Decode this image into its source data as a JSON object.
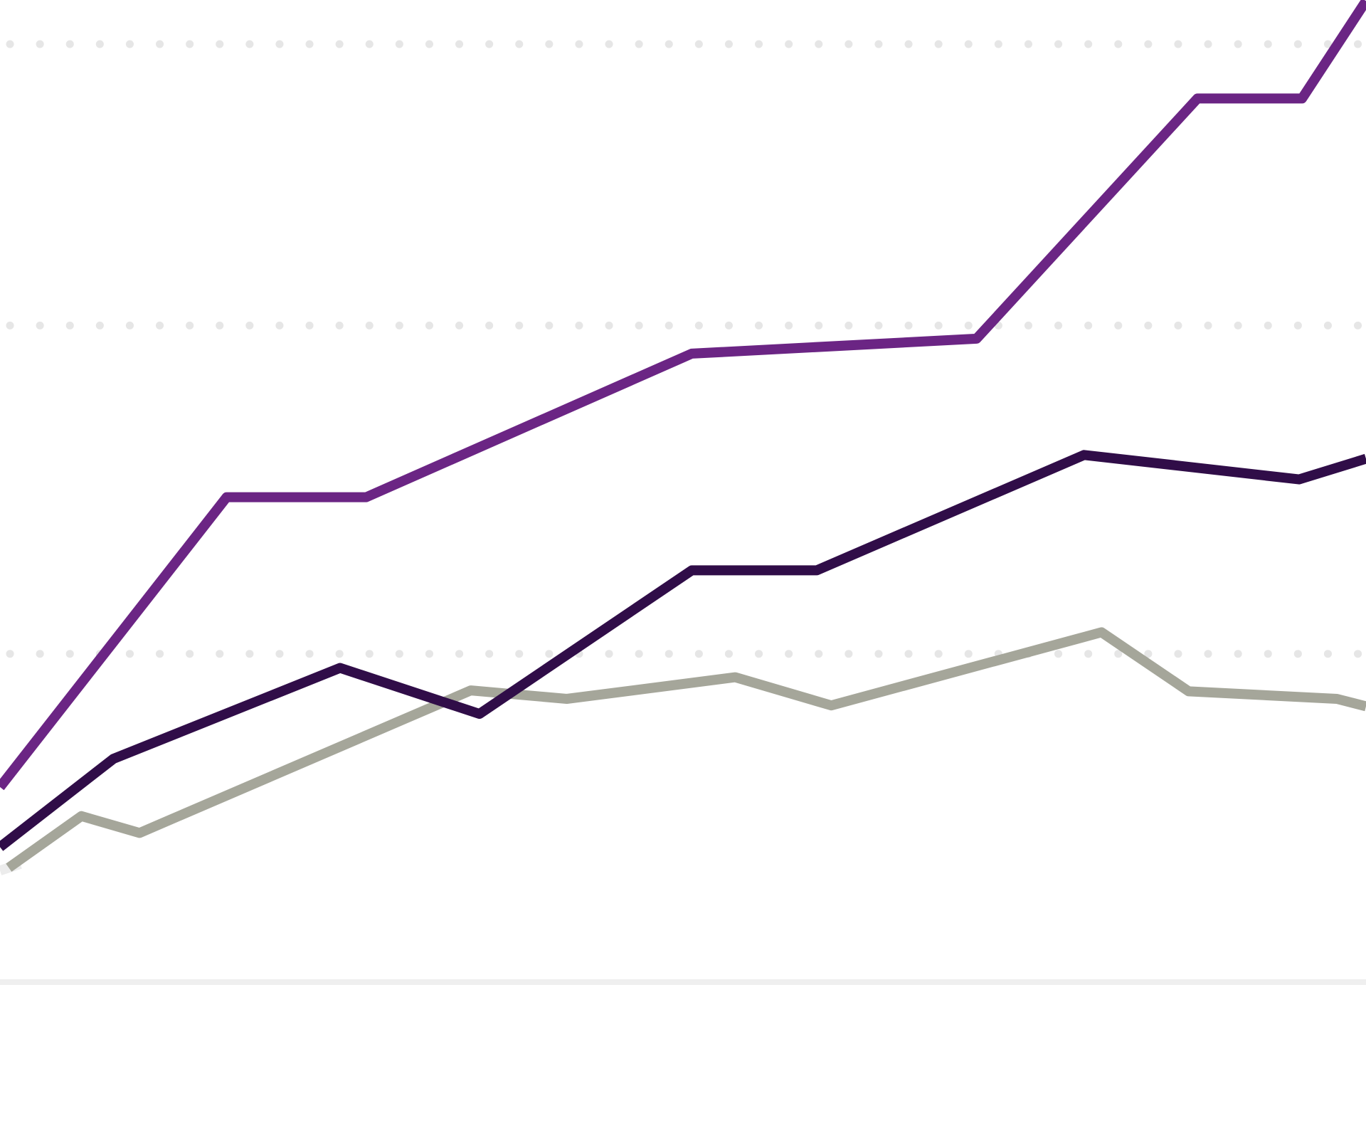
{
  "chart_data": {
    "type": "line",
    "title": "",
    "xlabel": "",
    "ylabel": "",
    "grid": true,
    "grid_style": "dotted",
    "legend": "none",
    "colors": {
      "grid": "#e6e6e6",
      "baseline": "#efefef",
      "trail": "#ececec"
    },
    "xlim": [
      0,
      23.5
    ],
    "ylim": [
      0,
      100
    ],
    "gridlines_y": [
      35,
      70,
      100
    ],
    "series": [
      {
        "color": "#6b2584",
        "points": [
          [
            0,
            20.8
          ],
          [
            3.9,
            51.7
          ],
          [
            6.3,
            51.7
          ],
          [
            11.9,
            67
          ],
          [
            16.8,
            68.6
          ],
          [
            20.6,
            94.2
          ],
          [
            22.4,
            94.2
          ],
          [
            23.5,
            104.6
          ]
        ]
      },
      {
        "color": "#300d48",
        "points": [
          [
            0,
            14.4
          ],
          [
            1.95,
            23.8
          ],
          [
            5.85,
            33.5
          ],
          [
            8.25,
            28.6
          ],
          [
            11.9,
            43.9
          ],
          [
            14.05,
            43.9
          ],
          [
            18.65,
            56.2
          ],
          [
            22.35,
            53.6
          ],
          [
            23.5,
            55.8
          ]
        ]
      },
      {
        "color": "#a5a69a",
        "points": [
          [
            0.15,
            12.2
          ],
          [
            1.4,
            17.7
          ],
          [
            2.4,
            15.9
          ],
          [
            8.1,
            31.1
          ],
          [
            9.75,
            30.2
          ],
          [
            12.65,
            32.5
          ],
          [
            14.3,
            29.5
          ],
          [
            18.95,
            37.3
          ],
          [
            20.45,
            31
          ],
          [
            23.0,
            30.2
          ],
          [
            23.5,
            29.4
          ]
        ]
      },
      {
        "color": "#ececec",
        "points": [
          [
            0,
            11.9
          ],
          [
            0.35,
            12.6
          ]
        ]
      }
    ]
  }
}
